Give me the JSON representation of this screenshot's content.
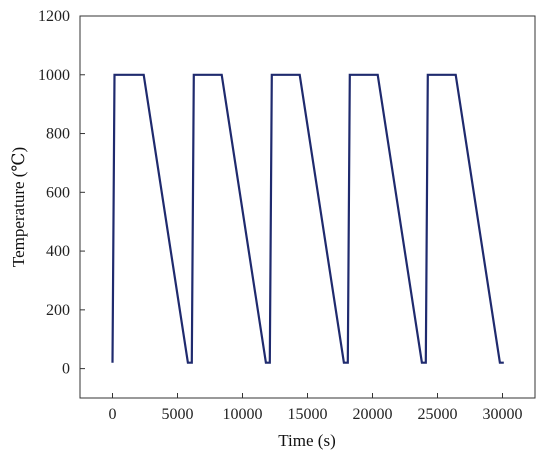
{
  "chart_data": {
    "type": "line",
    "xlabel": "Time (s)",
    "ylabel": "Temperature (℃)",
    "xlim": [
      -2500,
      32500
    ],
    "ylim": [
      -100,
      1200
    ],
    "xticks": [
      0,
      5000,
      10000,
      15000,
      20000,
      25000,
      30000
    ],
    "yticks": [
      0,
      200,
      400,
      600,
      800,
      1000,
      1200
    ],
    "grid": false,
    "line_color": "#1f2a6e",
    "series": [
      {
        "x": [
          0,
          150,
          2400,
          5800,
          6100,
          6250,
          8400,
          11800,
          12100,
          12250,
          14400,
          17800,
          18100,
          18250,
          20400,
          23800,
          24100,
          24250,
          26400,
          29800,
          30100
        ],
        "y": [
          20,
          1000,
          1000,
          20,
          20,
          1000,
          1000,
          20,
          20,
          1000,
          1000,
          20,
          20,
          1000,
          1000,
          20,
          20,
          1000,
          1000,
          20,
          20
        ]
      }
    ]
  }
}
